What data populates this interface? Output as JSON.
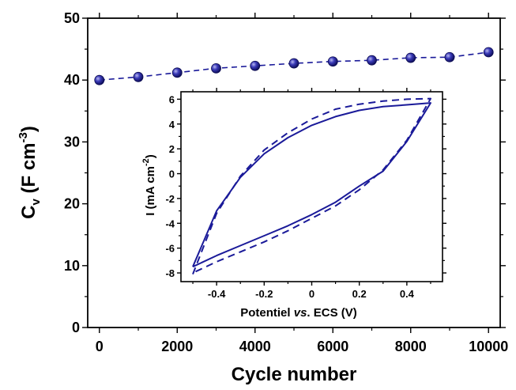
{
  "chart_data": [
    {
      "type": "scatter",
      "role": "main",
      "xlabel": "Cycle number",
      "ylabel": {
        "base": "C",
        "subscript": "v",
        "units_prefix": "(F cm",
        "units_superscript": "-3",
        "units_suffix": ")"
      },
      "xlim": [
        -300,
        10300
      ],
      "ylim": [
        0,
        50
      ],
      "xticks": [
        0,
        2000,
        4000,
        6000,
        8000,
        10000
      ],
      "yticks": [
        0,
        10,
        20,
        30,
        40,
        50
      ],
      "series": [
        {
          "marker": "sphere",
          "line_style": "dashed",
          "color": "#1a1a99",
          "x": [
            0,
            1000,
            2000,
            3000,
            4000,
            5000,
            6000,
            7000,
            8000,
            9000,
            10000
          ],
          "y": [
            40.0,
            40.5,
            41.2,
            41.9,
            42.3,
            42.7,
            43.0,
            43.2,
            43.6,
            43.7,
            44.5
          ]
        }
      ]
    },
    {
      "type": "line",
      "role": "inset",
      "xlabel": {
        "prefix": "Potentiel ",
        "italic": "vs",
        "suffix": ". ECS (V)"
      },
      "ylabel": {
        "prefix": "I (mA cm",
        "superscript": "-2",
        "suffix": ")"
      },
      "xlim": [
        -0.55,
        0.55
      ],
      "ylim": [
        -8.7,
        6.6
      ],
      "xticks": [
        -0.4,
        -0.2,
        0.0,
        0.2,
        0.4
      ],
      "yticks": [
        -8,
        -6,
        -4,
        -2,
        0,
        2,
        4,
        6
      ],
      "series": [
        {
          "line_style": "solid",
          "color": "#1a1a99",
          "x": [
            -0.5,
            -0.4,
            -0.3,
            -0.2,
            -0.1,
            0.0,
            0.1,
            0.2,
            0.3,
            0.4,
            0.5,
            0.4,
            0.3,
            0.2,
            0.1,
            0.0,
            -0.1,
            -0.2,
            -0.3,
            -0.4,
            -0.5
          ],
          "y": [
            -7.5,
            -3.0,
            -0.3,
            1.6,
            2.9,
            3.9,
            4.6,
            5.1,
            5.4,
            5.55,
            5.7,
            2.6,
            0.2,
            -1.0,
            -2.3,
            -3.3,
            -4.2,
            -5.0,
            -5.8,
            -6.6,
            -7.5
          ]
        },
        {
          "line_style": "dashed",
          "color": "#1a1a99",
          "x": [
            -0.5,
            -0.4,
            -0.3,
            -0.2,
            -0.1,
            0.0,
            0.1,
            0.2,
            0.3,
            0.4,
            0.5,
            0.4,
            0.3,
            0.2,
            0.1,
            0.0,
            -0.1,
            -0.2,
            -0.3,
            -0.4,
            -0.5
          ],
          "y": [
            -8.1,
            -3.2,
            -0.2,
            1.9,
            3.3,
            4.4,
            5.2,
            5.6,
            5.85,
            6.0,
            6.05,
            2.7,
            0.3,
            -1.3,
            -2.6,
            -3.6,
            -4.6,
            -5.5,
            -6.3,
            -7.1,
            -8.0
          ]
        }
      ]
    }
  ]
}
